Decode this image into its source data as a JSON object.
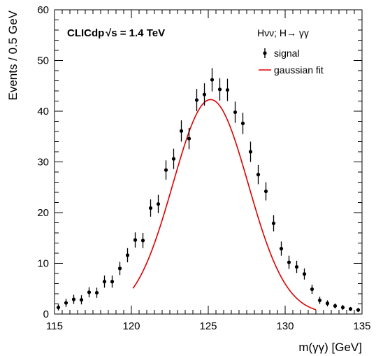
{
  "chart_data": {
    "type": "scatter",
    "xlabel": "m(γγ) [GeV]",
    "ylabel": "Events / 0.5 GeV",
    "xlim": [
      115,
      135
    ],
    "ylim": [
      0,
      60
    ],
    "x_ticks": [
      115,
      120,
      125,
      130,
      135
    ],
    "y_ticks": [
      0,
      10,
      20,
      30,
      40,
      50,
      60
    ],
    "experiment_label": "CLICdp",
    "energy_label": "√s = 1.4 TeV",
    "process_label": "Hνν; H→ γγ",
    "legend_position": "top-right",
    "series": [
      {
        "name": "signal",
        "style": "points-with-errors",
        "color": "#000000",
        "x": [
          115.25,
          115.75,
          116.25,
          116.75,
          117.25,
          117.75,
          118.25,
          118.75,
          119.25,
          119.75,
          120.25,
          120.75,
          121.25,
          121.75,
          122.25,
          122.75,
          123.25,
          123.75,
          124.25,
          124.75,
          125.25,
          125.75,
          126.25,
          126.75,
          127.25,
          127.75,
          128.25,
          128.75,
          129.25,
          129.75,
          130.25,
          130.75,
          131.25,
          131.75,
          132.25,
          132.75,
          133.25,
          133.75,
          134.25,
          134.75
        ],
        "y": [
          1.3,
          2.2,
          2.9,
          2.8,
          4.3,
          4.2,
          6.4,
          6.4,
          9.0,
          11.6,
          14.6,
          14.5,
          20.9,
          21.7,
          28.4,
          30.6,
          36.1,
          34.6,
          42.2,
          43.3,
          46.2,
          44.3,
          44.2,
          39.8,
          37.6,
          32.0,
          27.5,
          24.2,
          17.9,
          12.9,
          10.2,
          9.3,
          7.9,
          4.9,
          2.7,
          2.1,
          1.6,
          1.3,
          1.0,
          0.8
        ],
        "errors": [
          0.6,
          0.8,
          0.9,
          0.9,
          1.0,
          1.0,
          1.2,
          1.2,
          1.3,
          1.4,
          1.5,
          1.5,
          1.7,
          1.8,
          1.9,
          2.0,
          2.1,
          2.1,
          2.2,
          2.2,
          2.3,
          2.2,
          2.2,
          2.1,
          2.1,
          2.0,
          1.9,
          1.8,
          1.6,
          1.4,
          1.3,
          1.2,
          1.1,
          0.9,
          0.7,
          0.6,
          0.5,
          0.5,
          0.4,
          0.4
        ]
      },
      {
        "name": "gaussian fit",
        "style": "line",
        "color": "#dd0000",
        "mean": 125.15,
        "sigma": 2.45,
        "amplitude": 42.3,
        "x_range": [
          120.1,
          132.0
        ]
      }
    ]
  }
}
